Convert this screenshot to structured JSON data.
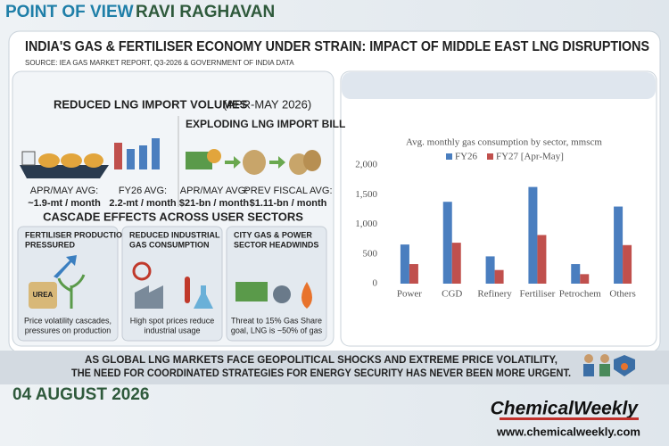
{
  "header": {
    "label": "POINT OF VIEW",
    "author": "RAVI RAGHAVAN"
  },
  "title": "INDIA'S GAS & FERTILISER ECONOMY UNDER STRAIN: IMPACT OF MIDDLE EAST LNG DISRUPTIONS",
  "source": "SOURCE: IEA GAS MARKET REPORT, Q3-2026 & GOVERNMENT OF INDIA DATA",
  "volumes": {
    "heading": "REDUCED LNG IMPORT VOLUMES",
    "period": "(APR-MAY 2026)",
    "stats": [
      {
        "label": "APR/MAY AVG:",
        "value": "~1.9-mt / month"
      },
      {
        "label": "FY26 AVG:",
        "value": "2.2-mt / month"
      }
    ]
  },
  "bill": {
    "heading": "EXPLODING LNG IMPORT BILL",
    "stats": [
      {
        "label": "APR/MAY AVG:",
        "value": "$21-bn / month"
      },
      {
        "label": "PREV FISCAL AVG:",
        "value": "$1.11-bn / month"
      }
    ]
  },
  "cascade": {
    "heading": "CASCADE EFFECTS ACROSS USER SECTORS",
    "cards": [
      {
        "title": [
          "FERTILISER PRODUCTION",
          "PRESSURED"
        ],
        "icon": "UREA",
        "text": [
          "Price volatility cascades,",
          "pressures on production"
        ]
      },
      {
        "title": [
          "REDUCED INDUSTRIAL",
          "GAS CONSUMPTION"
        ],
        "text": [
          "High spot prices reduce",
          "industrial usage"
        ]
      },
      {
        "title": [
          "CITY GAS & POWER",
          "SECTOR HEADWINDS"
        ],
        "text": [
          "Threat to 15% Gas Share",
          "goal, LNG is ~50% of gas"
        ]
      }
    ]
  },
  "banner": [
    "AS GLOBAL LNG MARKETS FACE GEOPOLITICAL SHOCKS AND EXTREME PRICE VOLATILITY,",
    "THE NEED FOR COORDINATED STRATEGIES FOR ENERGY SECURITY HAS NEVER BEEN MORE URGENT."
  ],
  "date": "04 AUGUST 2026",
  "logo": {
    "name": "ChemicalWeekly",
    "url": "www.chemicalweekly.com"
  },
  "chart_data": {
    "type": "bar",
    "title": "Avg. monthly gas consumption by sector, mmscm",
    "categories": [
      "Power",
      "CGD",
      "Refinery",
      "Fertiliser",
      "Petrochem",
      "Others"
    ],
    "series": [
      {
        "name": "FY26",
        "color": "#4a7ebf",
        "values": [
          660,
          1380,
          460,
          1630,
          330,
          1300
        ]
      },
      {
        "name": "FY27 [Apr-May]",
        "color": "#c0504d",
        "values": [
          330,
          690,
          230,
          820,
          160,
          650
        ]
      }
    ],
    "ylim": [
      0,
      2000
    ],
    "yticks": [
      0,
      500,
      {
        "value": 1000,
        "label": "1,000"
      },
      {
        "value": 1500,
        "label": "1,500"
      },
      {
        "value": 2000,
        "label": "2,000"
      }
    ],
    "grid": false
  }
}
